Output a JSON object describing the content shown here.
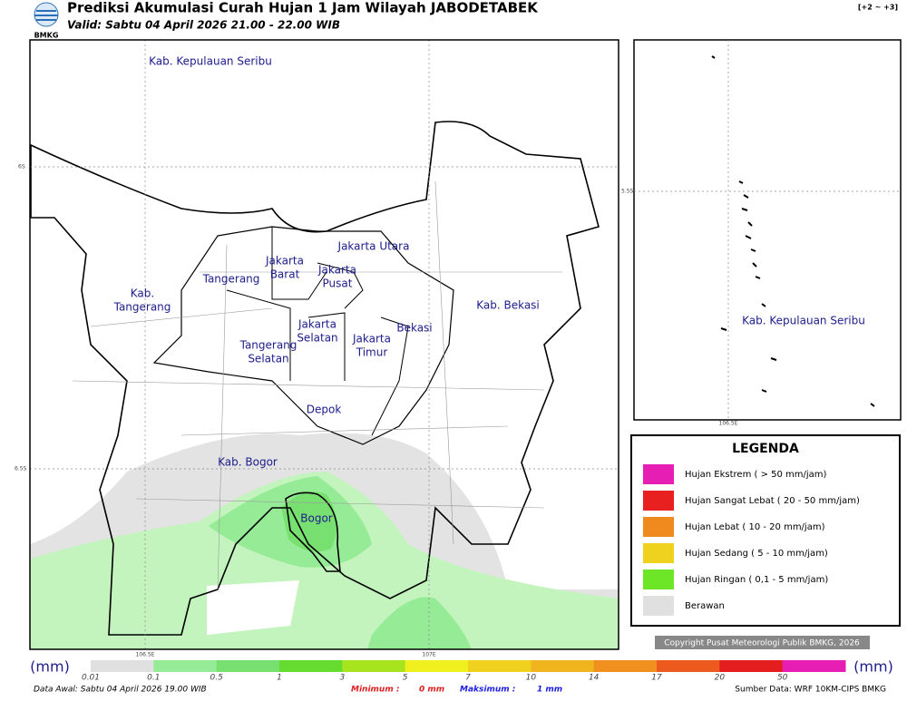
{
  "header": {
    "logo": "BMKG",
    "title": "Prediksi Akumulasi Curah Hujan 1 Jam Wilayah JABODETABEK",
    "valid": "Valid: Sabtu 04 April 2026 21.00 - 22.00 WIB",
    "badge": "[+2 ~ +3]"
  },
  "map": {
    "labels": [
      {
        "lines": [
          "Kab. Kepulauan Seribu"
        ]
      },
      {
        "lines": [
          "Jakarta Utara"
        ]
      },
      {
        "lines": [
          "Jakarta",
          "Barat"
        ]
      },
      {
        "lines": [
          "Jakarta",
          "Pusat"
        ]
      },
      {
        "lines": [
          "Tangerang"
        ]
      },
      {
        "lines": [
          "Kab.",
          "Tangerang"
        ]
      },
      {
        "lines": [
          "Kab. Bekasi"
        ]
      },
      {
        "lines": [
          "Jakarta",
          "Selatan"
        ]
      },
      {
        "lines": [
          "Bekasi"
        ]
      },
      {
        "lines": [
          "Jakarta",
          "Timur"
        ]
      },
      {
        "lines": [
          "Tangerang",
          "Selatan"
        ]
      },
      {
        "lines": [
          "Depok"
        ]
      },
      {
        "lines": [
          "Kab. Bogor"
        ]
      },
      {
        "lines": [
          "Bogor"
        ]
      }
    ],
    "lat_ticks": [
      "6S",
      "6.5S"
    ],
    "lon_ticks": [
      "106.5E",
      "107E"
    ]
  },
  "inset": {
    "label": "Kab. Kepulauan Seribu",
    "lat_tick": "5.5S",
    "lon_tick": "106.5E"
  },
  "legend": {
    "title": "LEGENDA",
    "items": [
      {
        "label": "Hujan Ekstrem ( > 50 mm/jam)",
        "color": "#e61eb4"
      },
      {
        "label": "Hujan Sangat Lebat ( 20 - 50 mm/jam)",
        "color": "#e82020"
      },
      {
        "label": "Hujan Lebat ( 10 - 20 mm/jam)",
        "color": "#ee8a1e"
      },
      {
        "label": "Hujan Sedang ( 5 - 10 mm/jam)",
        "color": "#eed21e"
      },
      {
        "label": "Hujan Ringan ( 0,1 - 5 mm/jam)",
        "color": "#6ee628"
      },
      {
        "label": "Berawan",
        "color": "#e0e0e0"
      }
    ]
  },
  "copyright": "Copyright Pusat Meteorologi Publik BMKG, 2026",
  "colorbar": {
    "unit": "(mm)",
    "labels": [
      "0.01",
      "0.1",
      "0.5",
      "1",
      "3",
      "5",
      "7",
      "10",
      "14",
      "17",
      "20",
      "50"
    ],
    "colors": [
      "#e0e0e0",
      "#c4f4be",
      "#96ec96",
      "#78e070",
      "#66dc30",
      "#a8e41e",
      "#f0f01e",
      "#f0d21e",
      "#f0b41e",
      "#f0901e",
      "#ec5a1e",
      "#e41e1e",
      "#e61eb4"
    ]
  },
  "footer": {
    "data_awal": "Data Awal: Sabtu 04 April 2026 19.00 WIB",
    "min_label": "Minimum :",
    "min_value": "0 mm",
    "max_label": "Maksimum :",
    "max_value": "1 mm",
    "source": "Sumber Data: WRF 10KM-CIPS BMKG"
  }
}
